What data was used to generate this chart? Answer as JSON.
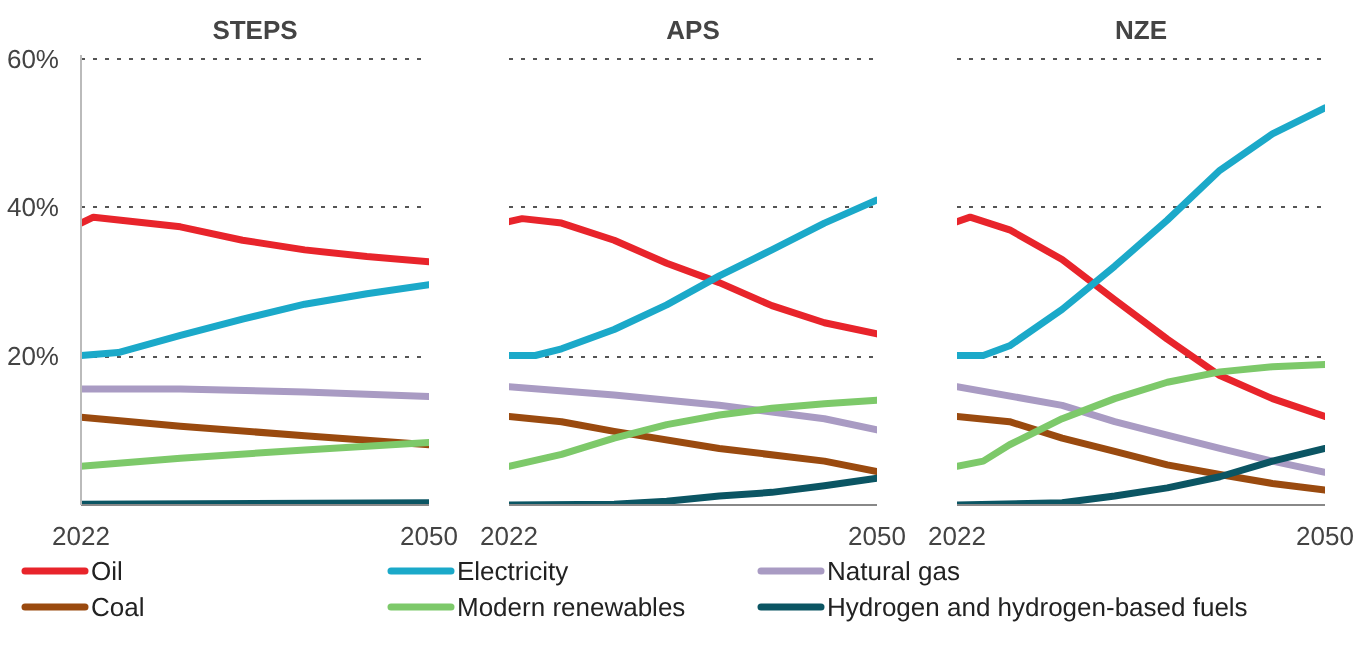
{
  "chart_data": [
    {
      "type": "line",
      "title": "STEPS",
      "ylim": [
        0,
        60.5
      ],
      "yticks": [
        {
          "value": 20,
          "label": "20%"
        },
        {
          "value": 40,
          "label": "40%"
        },
        {
          "value": 60,
          "label": "60%"
        }
      ],
      "xlim": [
        2022,
        2050
      ],
      "xticks": [
        2022,
        2050
      ],
      "grid": "y",
      "legend": "bottom",
      "line_style": "solid",
      "marker": "none",
      "series": [
        {
          "name": "Oil",
          "color": "#e8242b",
          "x": [
            2022,
            2023,
            2030,
            2035,
            2040,
            2045,
            2050
          ],
          "values": [
            37.9,
            38.7,
            37.4,
            35.6,
            34.3,
            33.4,
            32.7
          ]
        },
        {
          "name": "Electricity",
          "color": "#1ba9c9",
          "x": [
            2022,
            2025,
            2030,
            2035,
            2040,
            2045,
            2050
          ],
          "values": [
            20.1,
            20.5,
            22.8,
            25.0,
            27.0,
            28.4,
            29.6
          ]
        },
        {
          "name": "Natural gas",
          "color": "#a99bc3",
          "x": [
            2022,
            2030,
            2040,
            2050
          ],
          "values": [
            15.6,
            15.6,
            15.2,
            14.6
          ]
        },
        {
          "name": "Coal",
          "color": "#9a4a0f",
          "x": [
            2022,
            2030,
            2040,
            2050
          ],
          "values": [
            11.8,
            10.6,
            9.3,
            8.1
          ]
        },
        {
          "name": "Modern renewables",
          "color": "#7dc96a",
          "x": [
            2022,
            2030,
            2040,
            2050
          ],
          "values": [
            5.2,
            6.3,
            7.4,
            8.4
          ]
        },
        {
          "name": "Hydrogen and hydrogen-based fuels",
          "color": "#0b5563",
          "x": [
            2022,
            2050
          ],
          "values": [
            0.1,
            0.3
          ]
        }
      ]
    },
    {
      "type": "line",
      "title": "APS",
      "ylim": [
        0,
        60.5
      ],
      "yticks": [
        {
          "value": 20,
          "label": null
        },
        {
          "value": 40,
          "label": null
        },
        {
          "value": 60,
          "label": null
        }
      ],
      "xlim": [
        2022,
        2050
      ],
      "xticks": [
        2022,
        2050
      ],
      "grid": "y",
      "tick_labels": "x",
      "line_style": "solid",
      "marker": "none",
      "series": [
        {
          "color": "#e8242b",
          "x": [
            2022,
            2023,
            2026,
            2030,
            2034,
            2038,
            2042,
            2046,
            2050
          ],
          "values": [
            38.1,
            38.5,
            37.9,
            35.6,
            32.5,
            29.9,
            26.8,
            24.5,
            23.0
          ]
        },
        {
          "color": "#1ba9c9",
          "x": [
            2022,
            2024,
            2026,
            2030,
            2034,
            2038,
            2042,
            2046,
            2050
          ],
          "values": [
            20.1,
            20.1,
            21.0,
            23.6,
            26.9,
            30.8,
            34.3,
            37.9,
            41.0
          ]
        },
        {
          "color": "#a99bc3",
          "x": [
            2022,
            2030,
            2038,
            2046,
            2050
          ],
          "values": [
            15.9,
            14.8,
            13.4,
            11.6,
            10.1
          ]
        },
        {
          "color": "#9a4a0f",
          "x": [
            2022,
            2026,
            2030,
            2038,
            2046,
            2050
          ],
          "values": [
            11.9,
            11.2,
            9.9,
            7.6,
            5.9,
            4.5
          ]
        },
        {
          "color": "#7dc96a",
          "x": [
            2022,
            2026,
            2030,
            2034,
            2038,
            2042,
            2046,
            2050
          ],
          "values": [
            5.2,
            6.8,
            9.0,
            10.8,
            12.1,
            13.0,
            13.6,
            14.1
          ]
        },
        {
          "color": "#0b5563",
          "x": [
            2022,
            2030,
            2034,
            2038,
            2042,
            2046,
            2050
          ],
          "values": [
            0,
            0.1,
            0.5,
            1.2,
            1.7,
            2.6,
            3.6
          ]
        }
      ]
    },
    {
      "type": "line",
      "title": "NZE",
      "ylim": [
        0,
        60.5
      ],
      "yticks": [
        {
          "value": 20,
          "label": null
        },
        {
          "value": 40,
          "label": null
        },
        {
          "value": 60,
          "label": null
        }
      ],
      "xlim": [
        2022,
        2050
      ],
      "xticks": [
        2022,
        2050
      ],
      "grid": "y",
      "tick_labels": "x",
      "line_style": "solid",
      "marker": "none",
      "series": [
        {
          "color": "#e8242b",
          "x": [
            2022,
            2023,
            2026,
            2030,
            2034,
            2038,
            2042,
            2046,
            2050
          ],
          "values": [
            38.1,
            38.7,
            37.0,
            33.0,
            27.6,
            22.3,
            17.4,
            14.3,
            11.9
          ]
        },
        {
          "color": "#1ba9c9",
          "x": [
            2022,
            2024,
            2026,
            2030,
            2034,
            2038,
            2042,
            2046,
            2050
          ],
          "values": [
            20.1,
            20.1,
            21.4,
            26.3,
            32.1,
            38.3,
            45.0,
            49.9,
            53.4
          ]
        },
        {
          "color": "#a99bc3",
          "x": [
            2022,
            2030,
            2034,
            2038,
            2042,
            2046,
            2050
          ],
          "values": [
            15.9,
            13.4,
            11.2,
            9.4,
            7.6,
            5.9,
            4.4
          ]
        },
        {
          "color": "#9a4a0f",
          "x": [
            2022,
            2026,
            2030,
            2034,
            2038,
            2042,
            2046,
            2050
          ],
          "values": [
            11.9,
            11.2,
            9.0,
            7.2,
            5.4,
            4.1,
            2.9,
            2.0
          ]
        },
        {
          "color": "#7dc96a",
          "x": [
            2022,
            2024,
            2026,
            2030,
            2034,
            2038,
            2042,
            2046,
            2050
          ],
          "values": [
            5.2,
            5.9,
            8.1,
            11.6,
            14.3,
            16.5,
            17.9,
            18.6,
            18.9
          ]
        },
        {
          "color": "#0b5563",
          "x": [
            2022,
            2030,
            2034,
            2038,
            2042,
            2046,
            2050
          ],
          "values": [
            0,
            0.3,
            1.2,
            2.3,
            3.8,
            5.9,
            7.6
          ]
        }
      ]
    }
  ]
}
